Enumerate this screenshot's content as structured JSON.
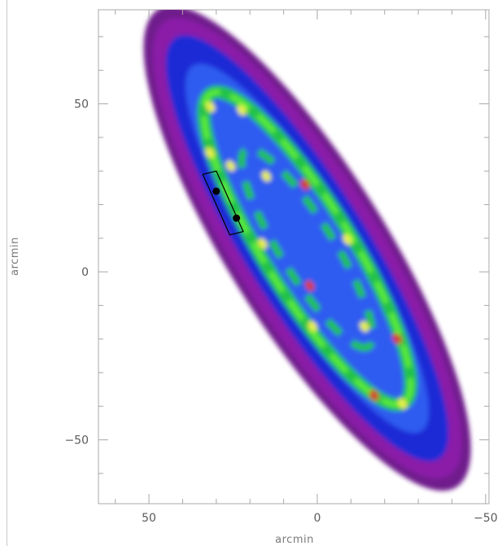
{
  "chart_data": {
    "type": "heatmap",
    "title": "",
    "xlabel": "arcmin",
    "ylabel": "arcmin",
    "xlim": [
      65,
      -51
    ],
    "ylim": [
      -69,
      78
    ],
    "x_ticks": [
      50,
      0,
      -50
    ],
    "x_tick_labels": [
      "50",
      "0",
      "−50"
    ],
    "y_ticks": [
      50,
      0,
      -50
    ],
    "y_tick_labels": [
      "50",
      "0",
      "−50"
    ],
    "grid": false,
    "colormap": [
      "#6f1f8c",
      "#8a1fa8",
      "#1d2bd6",
      "#2f5cf0",
      "#22c24a",
      "#5ef03a",
      "#c8f23c",
      "#e8f048",
      "#d83a2a",
      "#c8102e"
    ],
    "galaxy": {
      "center": [
        3,
        7
      ],
      "semi_major_arcmin": 82,
      "semi_minor_arcmin": 21,
      "position_angle_deg": 58
    },
    "markers": [
      {
        "x": 30,
        "y": 24
      },
      {
        "x": 24,
        "y": 16
      }
    ],
    "slit_box": {
      "corners": [
        [
          34,
          29
        ],
        [
          30,
          30
        ],
        [
          22,
          12
        ],
        [
          26,
          11
        ]
      ]
    }
  }
}
